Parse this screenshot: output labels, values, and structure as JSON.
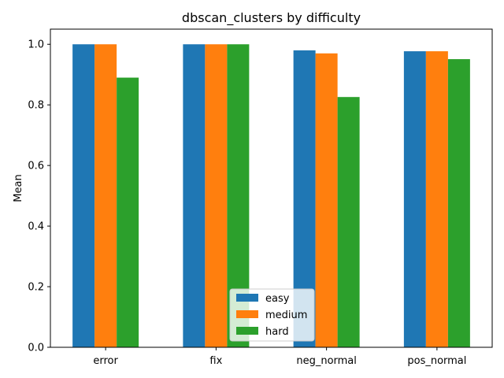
{
  "chart_data": {
    "type": "bar",
    "title": "dbscan_clusters by difficulty",
    "xlabel": "",
    "ylabel": "Mean",
    "categories": [
      "error",
      "fix",
      "neg_normal",
      "pos_normal"
    ],
    "series": [
      {
        "name": "easy",
        "color": "#1f77b4",
        "values": [
          1.0,
          1.0,
          0.98,
          0.977
        ]
      },
      {
        "name": "medium",
        "color": "#ff7f0e",
        "values": [
          1.0,
          1.0,
          0.97,
          0.977
        ]
      },
      {
        "name": "hard",
        "color": "#2ca02c",
        "values": [
          0.89,
          1.0,
          0.826,
          0.951
        ]
      }
    ],
    "ylim": [
      0,
      1.05
    ],
    "yticks": [
      "0.0",
      "0.2",
      "0.4",
      "0.6",
      "0.8",
      "1.0"
    ],
    "legend_position": "lower-center",
    "grid": false
  }
}
